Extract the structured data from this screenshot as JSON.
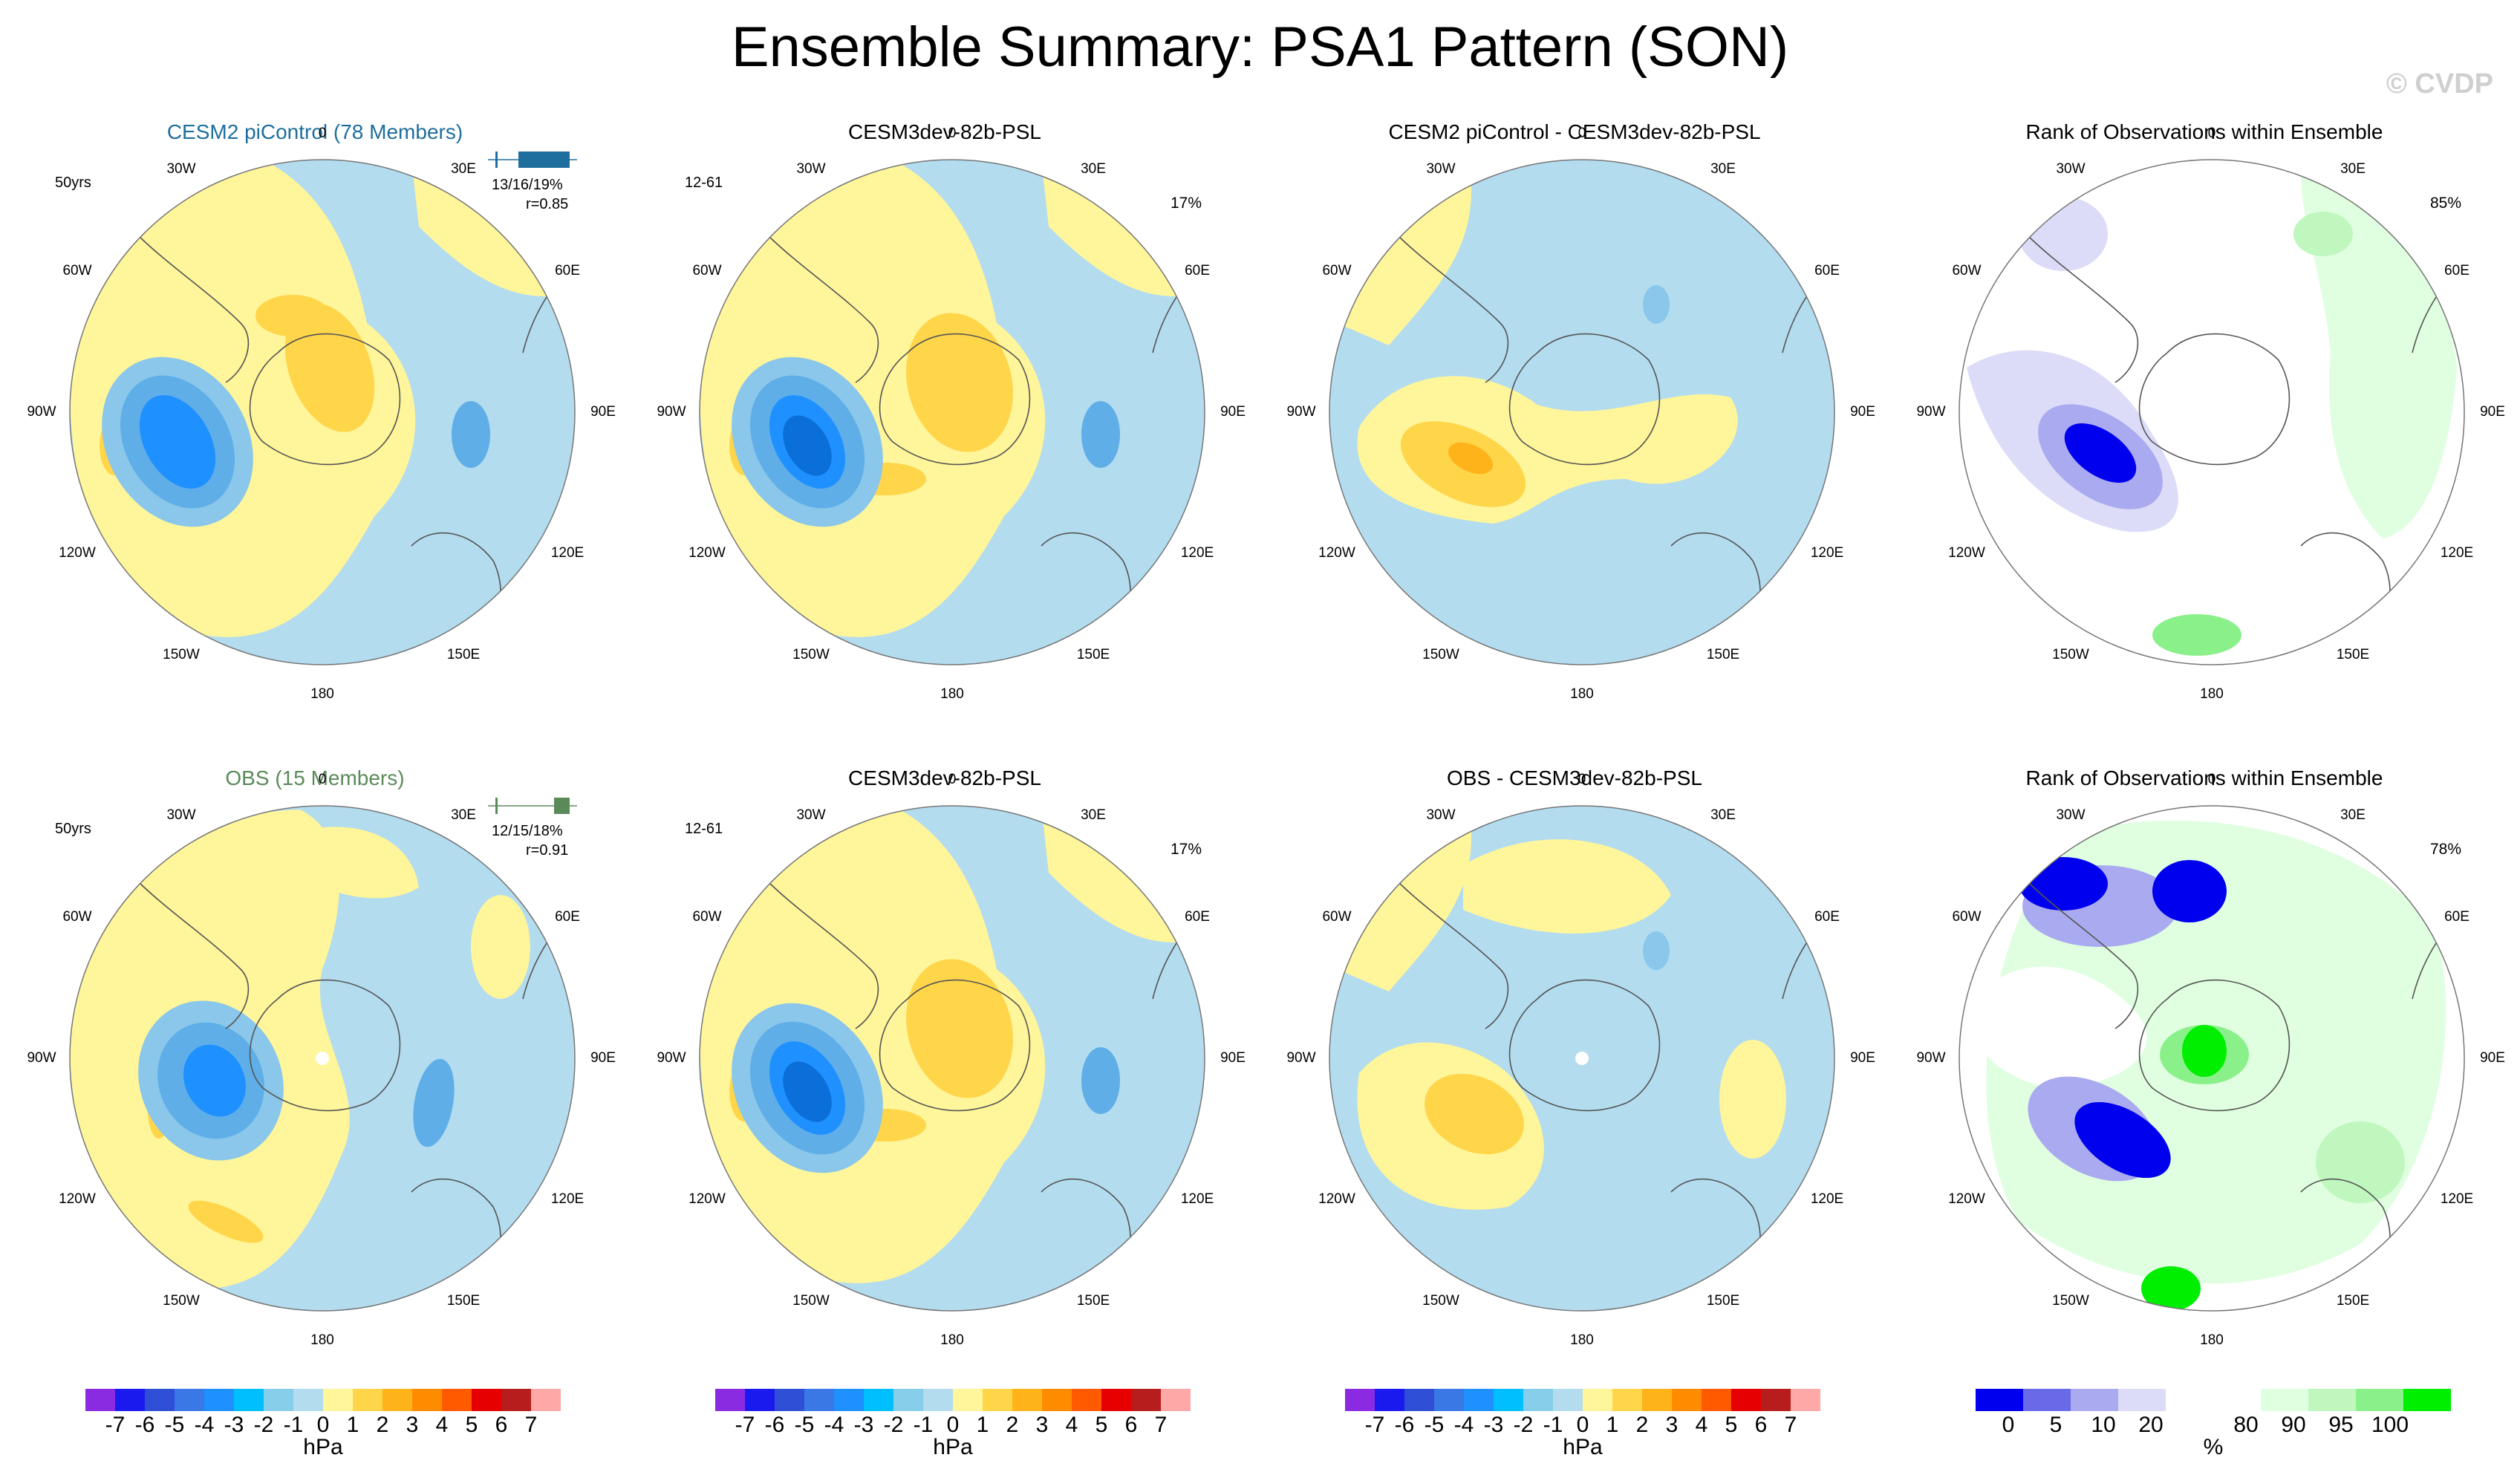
{
  "title": "Ensemble Summary: PSA1 Pattern (SON)",
  "watermark": "© CVDP",
  "colors": {
    "blue_light": "#b3dcef",
    "blue_mid": "#8ac7ea",
    "blue_deep": "#5faee8",
    "blue_core": "#1e90ff",
    "yellow_light": "#fff59a",
    "yellow_mid": "#ffd54a",
    "orange": "#ffb31a",
    "rank_low": "#0000ee",
    "rank_high": "#00ee00"
  },
  "panels": [
    {
      "title": "CESM2 piControl (78 Members)",
      "title_color": "#1e6e9e",
      "label": "50yrs",
      "pct": "",
      "stats": "13/16/19%",
      "corr": "r=0.85",
      "rank": false
    },
    {
      "title": "CESM3dev-82b-PSL",
      "title_color": "#000000",
      "label": "12-61",
      "pct": "17%",
      "stats": "",
      "corr": "",
      "rank": false
    },
    {
      "title": "CESM2 piControl - CESM3dev-82b-PSL",
      "title_color": "#000000",
      "label": "",
      "pct": "",
      "stats": "",
      "corr": "",
      "rank": false
    },
    {
      "title": "Rank of Observations within Ensemble",
      "title_color": "#000000",
      "label": "",
      "pct": "85%",
      "stats": "",
      "corr": "",
      "rank": true
    },
    {
      "title": "OBS (15 Members)",
      "title_color": "#5a8a5a",
      "label": "50yrs",
      "pct": "",
      "stats": "12/15/18%",
      "corr": "r=0.91",
      "rank": false
    },
    {
      "title": "CESM3dev-82b-PSL",
      "title_color": "#000000",
      "label": "12-61",
      "pct": "17%",
      "stats": "",
      "corr": "",
      "rank": false
    },
    {
      "title": "OBS - CESM3dev-82b-PSL",
      "title_color": "#000000",
      "label": "",
      "pct": "",
      "stats": "",
      "corr": "",
      "rank": false
    },
    {
      "title": "Rank of Observations within Ensemble",
      "title_color": "#000000",
      "label": "",
      "pct": "78%",
      "stats": "",
      "corr": "",
      "rank": true
    }
  ],
  "lon_labels": {
    "top": "0",
    "tr": "30E",
    "rt": "60E",
    "r": "90E",
    "rb": "120E",
    "br": "150E",
    "bot": "180",
    "bl": "150W",
    "lb": "120W",
    "l": "90W",
    "lt": "60W",
    "tl": "30W"
  },
  "colorbar_psl": {
    "unit": "hPa",
    "colors": [
      "#8a2be2",
      "#1a1aee",
      "#2e4fd6",
      "#3a78e6",
      "#1e90ff",
      "#00bfff",
      "#87ceeb",
      "#b3dcef",
      "#fff59a",
      "#ffd54a",
      "#ffb31a",
      "#ff8c00",
      "#ff5a00",
      "#e60000",
      "#b81d1d",
      "#ffa8a8"
    ],
    "labels": [
      "-7",
      "-6",
      "-5",
      "-4",
      "-3",
      "-2",
      "-1",
      "0",
      "1",
      "2",
      "3",
      "4",
      "5",
      "6",
      "7"
    ]
  },
  "colorbar_rank": {
    "unit": "%",
    "colors": [
      "#0000ee",
      "#6a6ae8",
      "#aaaaf0",
      "#dcdcf8",
      "#ffffff",
      "#ffffff",
      "#e0ffe0",
      "#bff7bf",
      "#8af08a",
      "#00ee00"
    ],
    "labels": [
      {
        "v": "0",
        "i": 1
      },
      {
        "v": "5",
        "i": 2
      },
      {
        "v": "10",
        "i": 3
      },
      {
        "v": "20",
        "i": 4
      },
      {
        "v": "80",
        "i": 6
      },
      {
        "v": "90",
        "i": 7
      },
      {
        "v": "95",
        "i": 8
      },
      {
        "v": "100",
        "i": 9
      }
    ]
  },
  "chart_data": [
    {
      "type": "heatmap",
      "title": "CESM2 piControl (78 Members)",
      "subtitle": "50yrs",
      "stats": "13/16/19%",
      "correlation": 0.85,
      "unit": "hPa",
      "projection": "south polar stereographic"
    },
    {
      "type": "heatmap",
      "title": "CESM3dev-82b-PSL",
      "subtitle": "12-61",
      "variance_explained": "17%",
      "unit": "hPa",
      "projection": "south polar stereographic"
    },
    {
      "type": "heatmap",
      "title": "CESM2 piControl - CESM3dev-82b-PSL",
      "unit": "hPa",
      "projection": "south polar stereographic"
    },
    {
      "type": "heatmap",
      "title": "Rank of Observations within Ensemble",
      "value": "85%",
      "unit": "%",
      "projection": "south polar stereographic"
    },
    {
      "type": "heatmap",
      "title": "OBS (15 Members)",
      "subtitle": "50yrs",
      "stats": "12/15/18%",
      "correlation": 0.91,
      "unit": "hPa",
      "projection": "south polar stereographic"
    },
    {
      "type": "heatmap",
      "title": "CESM3dev-82b-PSL",
      "subtitle": "12-61",
      "variance_explained": "17%",
      "unit": "hPa",
      "projection": "south polar stereographic"
    },
    {
      "type": "heatmap",
      "title": "OBS - CESM3dev-82b-PSL",
      "unit": "hPa",
      "projection": "south polar stereographic"
    },
    {
      "type": "heatmap",
      "title": "Rank of Observations within Ensemble",
      "value": "78%",
      "unit": "%",
      "projection": "south polar stereographic"
    }
  ]
}
